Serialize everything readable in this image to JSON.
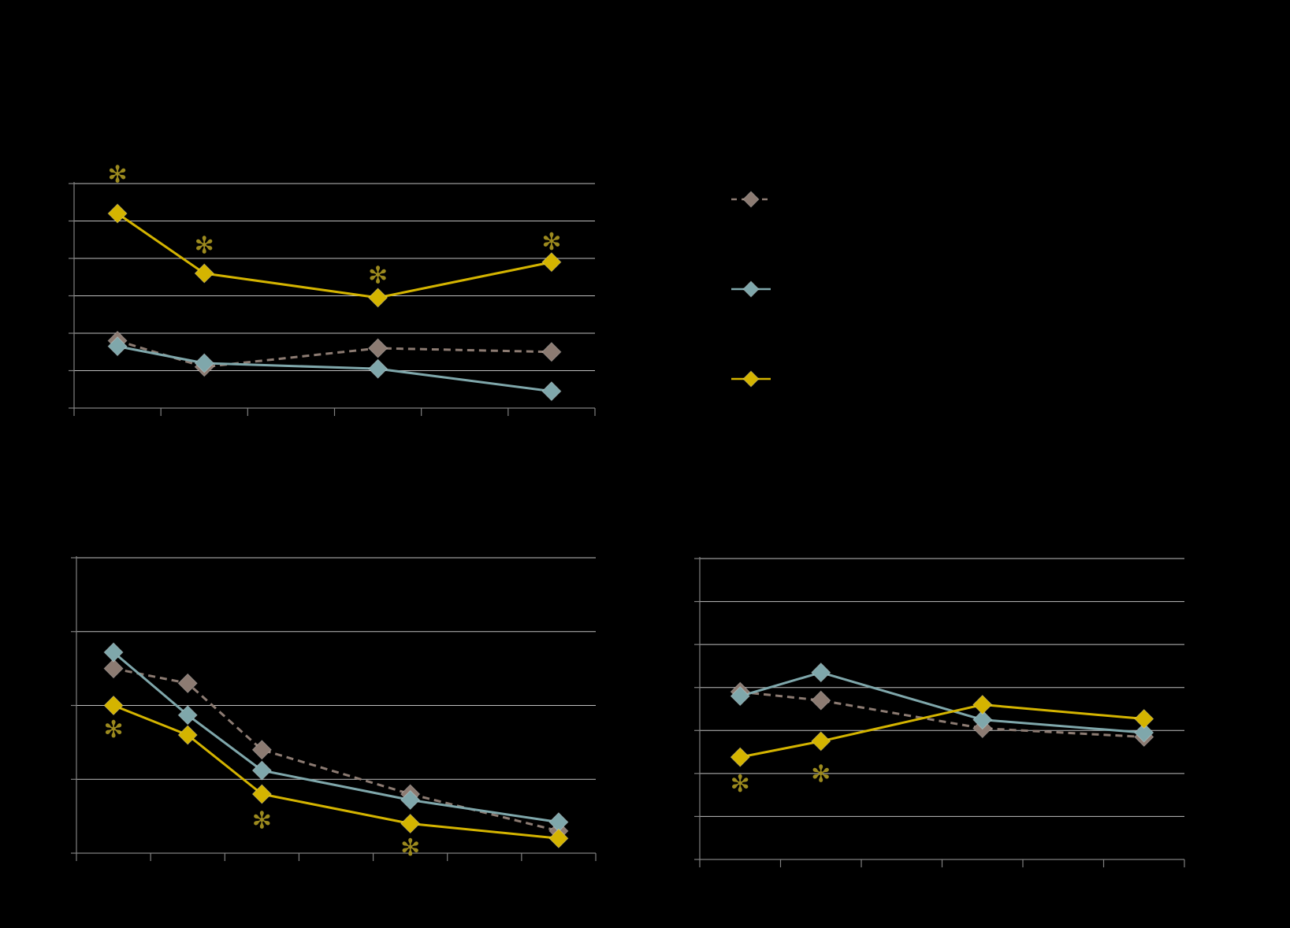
{
  "colors": {
    "background": "#000000",
    "grid": "#bfbfbf",
    "axis": "#808080",
    "brown": "#8c7b72",
    "teal": "#7fa7ab",
    "gold": "#d4b400",
    "asterisk": "#9c8a1e"
  },
  "legend": {
    "placement": "right",
    "items": [
      {
        "series": 0,
        "line_style": "dashed",
        "label": ""
      },
      {
        "series": 1,
        "line_style": "solid",
        "label": ""
      },
      {
        "series": 2,
        "line_style": "solid",
        "label": ""
      }
    ]
  },
  "chart_data": [
    {
      "type": "line",
      "grid": true,
      "ylim": [
        0,
        6
      ],
      "xlim": [
        0,
        6
      ],
      "significance_marker": "✻",
      "series": [
        {
          "style": "dashed",
          "color": "#8c7b72",
          "points": [
            [
              0.5,
              1.8
            ],
            [
              1.5,
              1.1
            ],
            [
              3.5,
              1.6
            ],
            [
              5.5,
              1.5
            ]
          ]
        },
        {
          "style": "solid",
          "color": "#7fa7ab",
          "points": [
            [
              0.5,
              1.65
            ],
            [
              1.5,
              1.2
            ],
            [
              3.5,
              1.05
            ],
            [
              5.5,
              0.45
            ]
          ]
        },
        {
          "style": "solid",
          "color": "#d4b400",
          "points": [
            [
              0.5,
              5.2
            ],
            [
              1.5,
              3.6
            ],
            [
              3.5,
              2.95
            ],
            [
              5.5,
              3.9
            ]
          ]
        }
      ],
      "significance": [
        [
          0.5,
          6.2
        ],
        [
          1.5,
          4.3
        ],
        [
          3.5,
          3.5
        ],
        [
          5.5,
          4.4
        ]
      ]
    },
    {
      "type": "line",
      "grid": true,
      "ylim": [
        0,
        4
      ],
      "xlim": [
        0,
        7
      ],
      "significance_marker": "✻",
      "series": [
        {
          "style": "dashed",
          "color": "#8c7b72",
          "points": [
            [
              0.5,
              2.5
            ],
            [
              1.5,
              2.3
            ],
            [
              2.5,
              1.4
            ],
            [
              4.5,
              0.8
            ],
            [
              6.5,
              0.3
            ]
          ]
        },
        {
          "style": "solid",
          "color": "#7fa7ab",
          "points": [
            [
              0.5,
              2.72
            ],
            [
              1.5,
              1.87
            ],
            [
              2.5,
              1.12
            ],
            [
              4.5,
              0.72
            ],
            [
              6.5,
              0.42
            ]
          ]
        },
        {
          "style": "solid",
          "color": "#d4b400",
          "points": [
            [
              0.5,
              2.0
            ],
            [
              1.5,
              1.6
            ],
            [
              2.5,
              0.8
            ],
            [
              4.5,
              0.4
            ],
            [
              6.5,
              0.2
            ]
          ]
        }
      ],
      "significance": [
        [
          0.5,
          1.65
        ],
        [
          2.5,
          0.42
        ],
        [
          4.5,
          0.05
        ]
      ]
    },
    {
      "type": "line",
      "grid": true,
      "ylim": [
        0,
        7
      ],
      "xlim": [
        0,
        6
      ],
      "significance_marker": "✻",
      "series": [
        {
          "style": "dashed",
          "color": "#8c7b72",
          "points": [
            [
              0.5,
              3.9
            ],
            [
              1.5,
              3.7
            ],
            [
              3.5,
              3.05
            ],
            [
              5.5,
              2.85
            ]
          ]
        },
        {
          "style": "solid",
          "color": "#7fa7ab",
          "points": [
            [
              0.5,
              3.8
            ],
            [
              1.5,
              4.35
            ],
            [
              3.5,
              3.25
            ],
            [
              5.5,
              2.95
            ]
          ]
        },
        {
          "style": "solid",
          "color": "#d4b400",
          "points": [
            [
              0.5,
              2.38
            ],
            [
              1.5,
              2.75
            ],
            [
              3.5,
              3.6
            ],
            [
              5.5,
              3.27
            ]
          ]
        }
      ],
      "significance": [
        [
          0.5,
          1.72
        ],
        [
          1.5,
          1.95
        ]
      ]
    }
  ]
}
